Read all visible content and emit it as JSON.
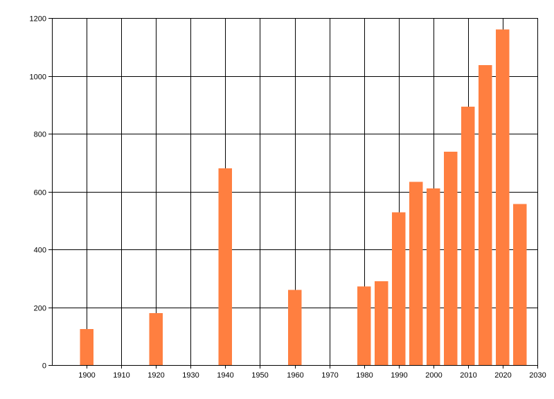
{
  "chart_data": {
    "type": "bar",
    "title": "",
    "xlabel": "",
    "ylabel": "",
    "xlim": [
      1890,
      2030
    ],
    "ylim": [
      0,
      1200
    ],
    "grid": true,
    "legend": "none",
    "bar_color": "#ff7f40",
    "x_ticks": [
      1900,
      1910,
      1920,
      1930,
      1940,
      1950,
      1960,
      1970,
      1980,
      1990,
      2000,
      2010,
      2020,
      2030
    ],
    "y_ticks": [
      0,
      200,
      400,
      600,
      800,
      1000,
      1200
    ],
    "x": [
      1900,
      1920,
      1940,
      1960,
      1980,
      1985,
      1990,
      1995,
      2000,
      2005,
      2010,
      2015,
      2020,
      2025
    ],
    "values": [
      125,
      180,
      680,
      260,
      272,
      290,
      528,
      633,
      611,
      738,
      894,
      1037,
      1160,
      557
    ]
  }
}
